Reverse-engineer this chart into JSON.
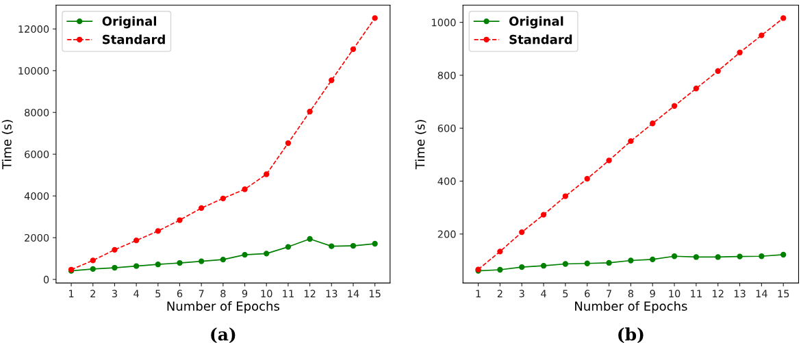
{
  "chart_data": [
    {
      "type": "line",
      "x": [
        1,
        2,
        3,
        4,
        5,
        6,
        7,
        8,
        9,
        10,
        11,
        12,
        13,
        14,
        15
      ],
      "xlabel": "Number of Epochs",
      "ylabel": "Time (s)",
      "xlim": [
        0.3,
        15.7
      ],
      "xticks": [
        1,
        2,
        3,
        4,
        5,
        6,
        7,
        8,
        9,
        10,
        11,
        12,
        13,
        14,
        15
      ],
      "ylim": [
        -170,
        13140
      ],
      "yticks": [
        0,
        2000,
        4000,
        6000,
        8000,
        10000,
        12000
      ],
      "legend": "top left",
      "marker": "circle",
      "grid": false,
      "annotations": [
        "(a)"
      ],
      "series": [
        {
          "name": "Original",
          "color": "#008000",
          "line_style": "solid",
          "values": [
            410,
            500,
            560,
            640,
            720,
            790,
            870,
            950,
            1180,
            1240,
            1560,
            1940,
            1590,
            1610,
            1710
          ]
        },
        {
          "name": "Standard",
          "color": "#ff0000",
          "line_style": "dashed",
          "values": [
            470,
            910,
            1420,
            1870,
            2320,
            2840,
            3420,
            3880,
            4320,
            5040,
            6530,
            8040,
            9540,
            11030,
            12520
          ]
        }
      ]
    },
    {
      "type": "line",
      "x": [
        1,
        2,
        3,
        4,
        5,
        6,
        7,
        8,
        9,
        10,
        11,
        12,
        13,
        14,
        15
      ],
      "xlabel": "Number of Epochs",
      "ylabel": "Time (s)",
      "xlim": [
        0.3,
        15.7
      ],
      "xticks": [
        1,
        2,
        3,
        4,
        5,
        6,
        7,
        8,
        9,
        10,
        11,
        12,
        13,
        14,
        15
      ],
      "ylim": [
        15,
        1065
      ],
      "yticks": [
        200,
        400,
        600,
        800,
        1000
      ],
      "legend": "top left",
      "marker": "circle",
      "grid": false,
      "annotations": [
        "(b)"
      ],
      "series": [
        {
          "name": "Original",
          "color": "#008000",
          "line_style": "solid",
          "values": [
            61,
            65,
            75,
            80,
            87,
            89,
            91,
            100,
            104,
            116,
            113,
            113,
            115,
            116,
            122
          ]
        },
        {
          "name": "Standard",
          "color": "#ff0000",
          "line_style": "dashed",
          "values": [
            66,
            134,
            207,
            273,
            343,
            409,
            478,
            551,
            618,
            684,
            750,
            816,
            886,
            951,
            1016
          ]
        }
      ]
    }
  ]
}
